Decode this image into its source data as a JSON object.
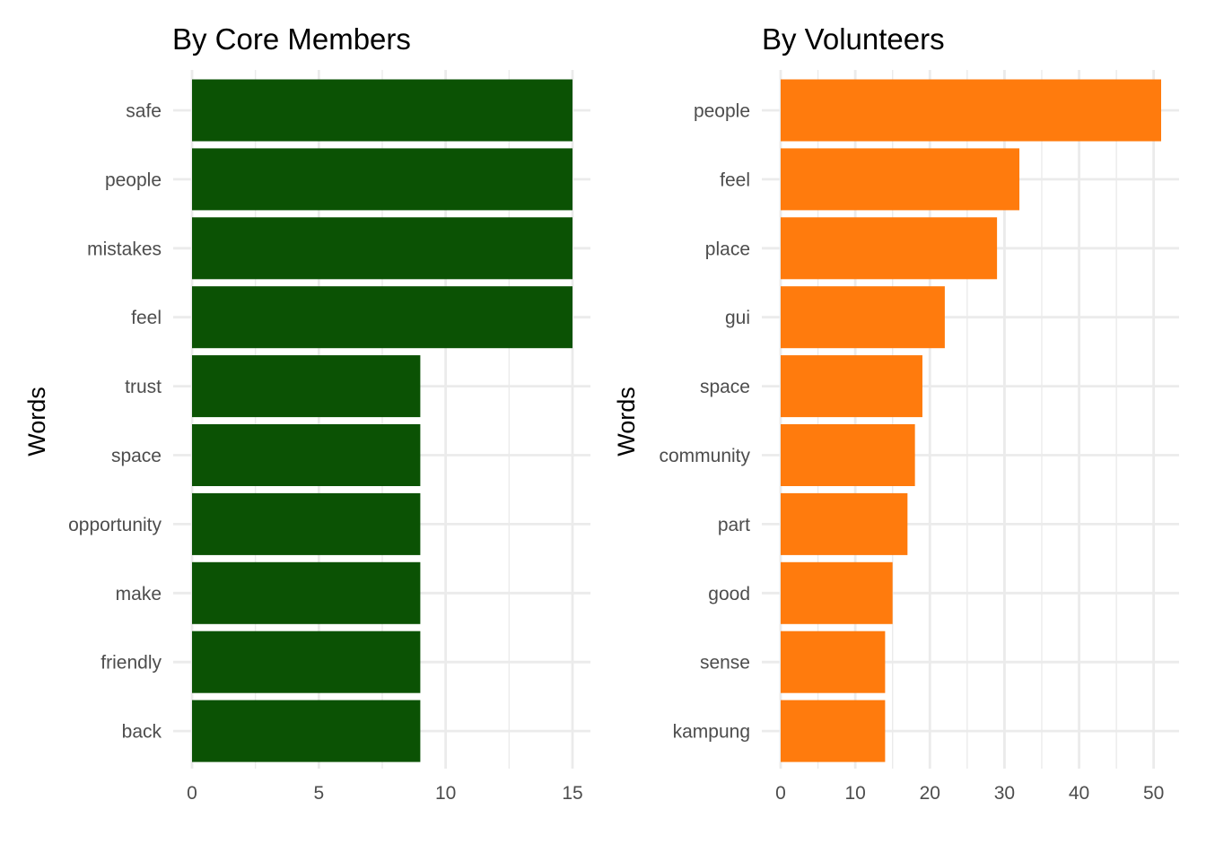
{
  "chart_data": [
    {
      "type": "bar",
      "orientation": "horizontal",
      "title": "By Core Members",
      "ylabel": "Words",
      "xlabel": "",
      "categories": [
        "safe",
        "people",
        "mistakes",
        "feel",
        "trust",
        "space",
        "opportunity",
        "make",
        "friendly",
        "back"
      ],
      "values": [
        15,
        15,
        15,
        15,
        9,
        9,
        9,
        9,
        9,
        9
      ],
      "xlim": [
        0,
        15
      ],
      "xticks": [
        0,
        5,
        10,
        15
      ],
      "color": "#0b5204",
      "grid": true
    },
    {
      "type": "bar",
      "orientation": "horizontal",
      "title": "By Volunteers",
      "ylabel": "Words",
      "xlabel": "",
      "categories": [
        "people",
        "feel",
        "place",
        "gui",
        "space",
        "community",
        "part",
        "good",
        "sense",
        "kampung"
      ],
      "values": [
        51,
        32,
        29,
        22,
        19,
        18,
        17,
        15,
        14,
        14
      ],
      "xlim": [
        0,
        51
      ],
      "xticks": [
        0,
        10,
        20,
        30,
        40,
        50
      ],
      "color": "#ff7b0d",
      "grid": true
    }
  ]
}
